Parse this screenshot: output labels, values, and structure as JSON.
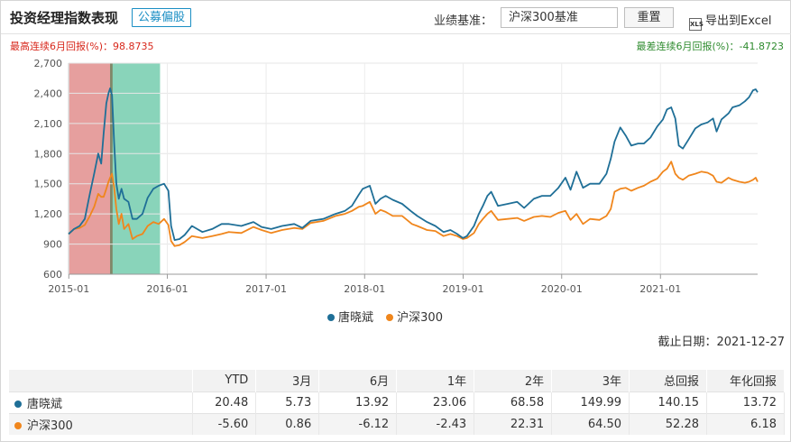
{
  "header": {
    "title": "投资经理指数表现",
    "tag": "公募偏股",
    "benchmark_label": "业绩基准：",
    "benchmark_value": "沪深300基准",
    "reset_label": "重置",
    "export_icon_text": "XLS",
    "export_label": "导出到Excel"
  },
  "stats": {
    "best_label": "最高连续6月回报(%)：98.8735",
    "worst_label": "最差连续6月回报(%)：-41.8723"
  },
  "colors": {
    "manager": "#1f6f97",
    "index": "#f0861c",
    "best_band": "#dd7a78",
    "worst_band": "#5cc4a0",
    "overlap_band": "#7f7a5a"
  },
  "chart_data": {
    "type": "line",
    "ylim": [
      600,
      2700
    ],
    "y_ticks": [
      "600",
      "900",
      "1,200",
      "1,500",
      "1,800",
      "2,100",
      "2,400",
      "2,700"
    ],
    "y_tick_values": [
      600,
      900,
      1200,
      1500,
      1800,
      2100,
      2400,
      2700
    ],
    "x_range": [
      "2014-12-31",
      "2021-12-27"
    ],
    "x_ticks": [
      "2015-01",
      "2016-01",
      "2017-01",
      "2018-01",
      "2019-01",
      "2020-01",
      "2021-01"
    ],
    "x_tick_dates": [
      "2015-01-01",
      "2016-01-01",
      "2017-01-01",
      "2018-01-01",
      "2019-01-01",
      "2020-01-01",
      "2021-01-01"
    ],
    "highlight_bands": [
      {
        "start": "2015-01-01",
        "end": "2015-06-12",
        "kind": "best"
      },
      {
        "start": "2015-06-03",
        "end": "2015-12-05",
        "kind": "worst"
      }
    ],
    "grid": true,
    "legend_position": "bottom-center",
    "series": [
      {
        "name": "唐晓斌",
        "points": [
          [
            "2014-12-31",
            1000
          ],
          [
            "2015-01-20",
            1050
          ],
          [
            "2015-02-10",
            1080
          ],
          [
            "2015-03-01",
            1150
          ],
          [
            "2015-03-20",
            1400
          ],
          [
            "2015-04-05",
            1600
          ],
          [
            "2015-04-20",
            1800
          ],
          [
            "2015-05-01",
            1700
          ],
          [
            "2015-05-10",
            2000
          ],
          [
            "2015-05-20",
            2300
          ],
          [
            "2015-05-28",
            2400
          ],
          [
            "2015-06-03",
            2450
          ],
          [
            "2015-06-10",
            2380
          ],
          [
            "2015-06-18",
            1900
          ],
          [
            "2015-06-26",
            1500
          ],
          [
            "2015-07-05",
            1350
          ],
          [
            "2015-07-15",
            1450
          ],
          [
            "2015-07-25",
            1350
          ],
          [
            "2015-08-10",
            1320
          ],
          [
            "2015-08-25",
            1150
          ],
          [
            "2015-09-10",
            1150
          ],
          [
            "2015-10-01",
            1200
          ],
          [
            "2015-10-20",
            1360
          ],
          [
            "2015-11-10",
            1450
          ],
          [
            "2015-11-30",
            1480
          ],
          [
            "2015-12-20",
            1500
          ],
          [
            "2016-01-05",
            1430
          ],
          [
            "2016-01-15",
            1080
          ],
          [
            "2016-01-28",
            940
          ],
          [
            "2016-02-15",
            950
          ],
          [
            "2016-03-05",
            990
          ],
          [
            "2016-04-01",
            1080
          ],
          [
            "2016-05-10",
            1020
          ],
          [
            "2016-06-15",
            1050
          ],
          [
            "2016-07-20",
            1100
          ],
          [
            "2016-08-15",
            1100
          ],
          [
            "2016-10-01",
            1080
          ],
          [
            "2016-11-15",
            1120
          ],
          [
            "2016-12-15",
            1070
          ],
          [
            "2017-01-20",
            1050
          ],
          [
            "2017-03-01",
            1080
          ],
          [
            "2017-04-15",
            1100
          ],
          [
            "2017-05-15",
            1060
          ],
          [
            "2017-06-15",
            1130
          ],
          [
            "2017-08-01",
            1150
          ],
          [
            "2017-09-15",
            1200
          ],
          [
            "2017-10-20",
            1230
          ],
          [
            "2017-11-15",
            1280
          ],
          [
            "2017-12-10",
            1390
          ],
          [
            "2017-12-25",
            1450
          ],
          [
            "2018-01-20",
            1480
          ],
          [
            "2018-02-10",
            1300
          ],
          [
            "2018-03-01",
            1350
          ],
          [
            "2018-03-20",
            1380
          ],
          [
            "2018-04-15",
            1340
          ],
          [
            "2018-05-20",
            1300
          ],
          [
            "2018-06-25",
            1220
          ],
          [
            "2018-07-15",
            1180
          ],
          [
            "2018-08-20",
            1120
          ],
          [
            "2018-09-20",
            1080
          ],
          [
            "2018-10-20",
            1020
          ],
          [
            "2018-11-15",
            1040
          ],
          [
            "2018-12-10",
            1000
          ],
          [
            "2018-12-31",
            960
          ],
          [
            "2019-01-15",
            980
          ],
          [
            "2019-02-10",
            1080
          ],
          [
            "2019-02-28",
            1200
          ],
          [
            "2019-03-15",
            1280
          ],
          [
            "2019-04-01",
            1380
          ],
          [
            "2019-04-15",
            1420
          ],
          [
            "2019-05-10",
            1280
          ],
          [
            "2019-06-15",
            1300
          ],
          [
            "2019-07-20",
            1320
          ],
          [
            "2019-08-15",
            1260
          ],
          [
            "2019-09-20",
            1350
          ],
          [
            "2019-10-20",
            1380
          ],
          [
            "2019-11-20",
            1380
          ],
          [
            "2019-12-20",
            1460
          ],
          [
            "2020-01-15",
            1560
          ],
          [
            "2020-02-03",
            1440
          ],
          [
            "2020-02-25",
            1620
          ],
          [
            "2020-03-20",
            1460
          ],
          [
            "2020-04-15",
            1500
          ],
          [
            "2020-05-20",
            1500
          ],
          [
            "2020-06-15",
            1600
          ],
          [
            "2020-07-01",
            1750
          ],
          [
            "2020-07-15",
            1920
          ],
          [
            "2020-08-05",
            2060
          ],
          [
            "2020-08-25",
            1980
          ],
          [
            "2020-09-15",
            1880
          ],
          [
            "2020-10-10",
            1900
          ],
          [
            "2020-11-01",
            1900
          ],
          [
            "2020-11-25",
            1960
          ],
          [
            "2020-12-20",
            2070
          ],
          [
            "2021-01-10",
            2140
          ],
          [
            "2021-01-25",
            2240
          ],
          [
            "2021-02-10",
            2260
          ],
          [
            "2021-02-25",
            2150
          ],
          [
            "2021-03-10",
            1880
          ],
          [
            "2021-03-25",
            1850
          ],
          [
            "2021-04-15",
            1940
          ],
          [
            "2021-05-10",
            2050
          ],
          [
            "2021-06-01",
            2090
          ],
          [
            "2021-06-25",
            2110
          ],
          [
            "2021-07-15",
            2150
          ],
          [
            "2021-07-28",
            2020
          ],
          [
            "2021-08-15",
            2140
          ],
          [
            "2021-09-10",
            2200
          ],
          [
            "2021-09-25",
            2260
          ],
          [
            "2021-10-20",
            2280
          ],
          [
            "2021-11-10",
            2320
          ],
          [
            "2021-11-25",
            2360
          ],
          [
            "2021-12-10",
            2430
          ],
          [
            "2021-12-20",
            2440
          ],
          [
            "2021-12-27",
            2410
          ]
        ]
      },
      {
        "name": "沪深300",
        "points": [
          [
            "2014-12-31",
            1000
          ],
          [
            "2015-01-20",
            1050
          ],
          [
            "2015-02-10",
            1060
          ],
          [
            "2015-03-01",
            1090
          ],
          [
            "2015-03-20",
            1180
          ],
          [
            "2015-04-05",
            1270
          ],
          [
            "2015-04-20",
            1400
          ],
          [
            "2015-05-01",
            1370
          ],
          [
            "2015-05-10",
            1370
          ],
          [
            "2015-05-20",
            1450
          ],
          [
            "2015-05-28",
            1520
          ],
          [
            "2015-06-03",
            1560
          ],
          [
            "2015-06-10",
            1600
          ],
          [
            "2015-06-18",
            1460
          ],
          [
            "2015-06-26",
            1250
          ],
          [
            "2015-07-05",
            1100
          ],
          [
            "2015-07-15",
            1200
          ],
          [
            "2015-07-25",
            1050
          ],
          [
            "2015-08-10",
            1100
          ],
          [
            "2015-08-25",
            950
          ],
          [
            "2015-09-10",
            980
          ],
          [
            "2015-10-01",
            1000
          ],
          [
            "2015-10-20",
            1080
          ],
          [
            "2015-11-10",
            1120
          ],
          [
            "2015-11-30",
            1100
          ],
          [
            "2015-12-20",
            1150
          ],
          [
            "2016-01-05",
            1090
          ],
          [
            "2016-01-15",
            930
          ],
          [
            "2016-01-28",
            880
          ],
          [
            "2016-02-15",
            890
          ],
          [
            "2016-03-05",
            920
          ],
          [
            "2016-04-01",
            980
          ],
          [
            "2016-05-10",
            960
          ],
          [
            "2016-06-15",
            980
          ],
          [
            "2016-07-20",
            1000
          ],
          [
            "2016-08-15",
            1020
          ],
          [
            "2016-10-01",
            1010
          ],
          [
            "2016-11-15",
            1070
          ],
          [
            "2016-12-15",
            1040
          ],
          [
            "2017-01-20",
            1010
          ],
          [
            "2017-03-01",
            1040
          ],
          [
            "2017-04-15",
            1060
          ],
          [
            "2017-05-15",
            1050
          ],
          [
            "2017-06-15",
            1110
          ],
          [
            "2017-08-01",
            1130
          ],
          [
            "2017-09-15",
            1180
          ],
          [
            "2017-10-20",
            1200
          ],
          [
            "2017-11-15",
            1230
          ],
          [
            "2017-12-10",
            1270
          ],
          [
            "2017-12-25",
            1280
          ],
          [
            "2018-01-20",
            1320
          ],
          [
            "2018-02-10",
            1200
          ],
          [
            "2018-03-01",
            1240
          ],
          [
            "2018-03-20",
            1220
          ],
          [
            "2018-04-15",
            1180
          ],
          [
            "2018-05-20",
            1180
          ],
          [
            "2018-06-25",
            1100
          ],
          [
            "2018-07-15",
            1080
          ],
          [
            "2018-08-20",
            1040
          ],
          [
            "2018-09-20",
            1030
          ],
          [
            "2018-10-20",
            980
          ],
          [
            "2018-11-15",
            1000
          ],
          [
            "2018-12-10",
            980
          ],
          [
            "2018-12-31",
            950
          ],
          [
            "2019-01-15",
            960
          ],
          [
            "2019-02-10",
            1010
          ],
          [
            "2019-02-28",
            1100
          ],
          [
            "2019-03-15",
            1150
          ],
          [
            "2019-04-01",
            1200
          ],
          [
            "2019-04-15",
            1230
          ],
          [
            "2019-05-10",
            1140
          ],
          [
            "2019-06-15",
            1150
          ],
          [
            "2019-07-20",
            1160
          ],
          [
            "2019-08-15",
            1130
          ],
          [
            "2019-09-20",
            1170
          ],
          [
            "2019-10-20",
            1180
          ],
          [
            "2019-11-20",
            1170
          ],
          [
            "2019-12-20",
            1210
          ],
          [
            "2020-01-15",
            1230
          ],
          [
            "2020-02-03",
            1140
          ],
          [
            "2020-02-25",
            1200
          ],
          [
            "2020-03-20",
            1100
          ],
          [
            "2020-04-15",
            1150
          ],
          [
            "2020-05-20",
            1140
          ],
          [
            "2020-06-15",
            1180
          ],
          [
            "2020-07-01",
            1250
          ],
          [
            "2020-07-15",
            1420
          ],
          [
            "2020-08-05",
            1450
          ],
          [
            "2020-08-25",
            1460
          ],
          [
            "2020-09-15",
            1430
          ],
          [
            "2020-10-10",
            1460
          ],
          [
            "2020-11-01",
            1480
          ],
          [
            "2020-11-25",
            1520
          ],
          [
            "2020-12-20",
            1550
          ],
          [
            "2021-01-10",
            1620
          ],
          [
            "2021-01-25",
            1650
          ],
          [
            "2021-02-10",
            1720
          ],
          [
            "2021-02-25",
            1600
          ],
          [
            "2021-03-10",
            1560
          ],
          [
            "2021-03-25",
            1540
          ],
          [
            "2021-04-15",
            1580
          ],
          [
            "2021-05-10",
            1600
          ],
          [
            "2021-06-01",
            1620
          ],
          [
            "2021-06-25",
            1610
          ],
          [
            "2021-07-15",
            1580
          ],
          [
            "2021-07-28",
            1520
          ],
          [
            "2021-08-15",
            1510
          ],
          [
            "2021-09-10",
            1560
          ],
          [
            "2021-09-25",
            1540
          ],
          [
            "2021-10-20",
            1520
          ],
          [
            "2021-11-10",
            1510
          ],
          [
            "2021-11-25",
            1520
          ],
          [
            "2021-12-10",
            1540
          ],
          [
            "2021-12-20",
            1560
          ],
          [
            "2021-12-27",
            1520
          ]
        ]
      }
    ]
  },
  "legend": [
    {
      "name": "唐晓斌",
      "color": "#1f6f97"
    },
    {
      "name": "沪深300",
      "color": "#f0861c"
    }
  ],
  "cutoff_date": "截止日期：2021-12-27",
  "table": {
    "headers": [
      "",
      "YTD",
      "3月",
      "6月",
      "1年",
      "2年",
      "3年",
      "总回报",
      "年化回报"
    ],
    "rows": [
      {
        "name": "唐晓斌",
        "color": "#1f6f97",
        "values": [
          "20.48",
          "5.73",
          "13.92",
          "23.06",
          "68.58",
          "149.99",
          "140.15",
          "13.72"
        ]
      },
      {
        "name": "沪深300",
        "color": "#f0861c",
        "values": [
          "-5.60",
          "0.86",
          "-6.12",
          "-2.43",
          "22.31",
          "64.50",
          "52.28",
          "6.18"
        ]
      }
    ]
  }
}
